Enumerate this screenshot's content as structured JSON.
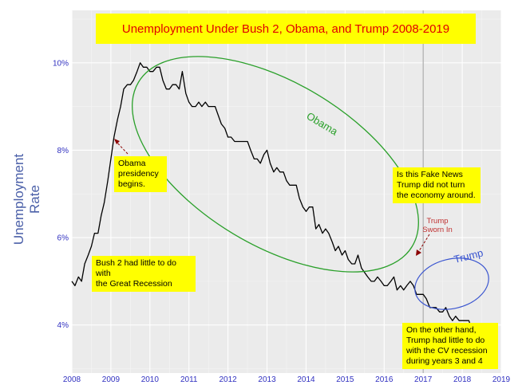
{
  "chart_data": {
    "type": "line",
    "title": "Unemployment Under Bush 2, Obama, and Trump 2008-2019",
    "ylabel": "Unemployment Rate",
    "xlabel": "",
    "xlim": [
      2008,
      2019
    ],
    "ylim": [
      2.9,
      11.2
    ],
    "x_ticks": [
      "2008",
      "2009",
      "2010",
      "2011",
      "2012",
      "2013",
      "2014",
      "2015",
      "2016",
      "2017",
      "2018",
      "2019"
    ],
    "y_ticks": [
      "4%",
      "6%",
      "8%",
      "10%"
    ],
    "y_tick_values": [
      4,
      6,
      8,
      10
    ],
    "grid": true,
    "series": [
      {
        "x": [
          2008.0,
          2008.08,
          2008.17,
          2008.25,
          2008.33,
          2008.42,
          2008.5,
          2008.58,
          2008.67,
          2008.75,
          2008.83,
          2008.92,
          2009.0,
          2009.08,
          2009.17,
          2009.25,
          2009.33,
          2009.42,
          2009.5,
          2009.58,
          2009.67,
          2009.75,
          2009.83,
          2009.92,
          2010.0,
          2010.08,
          2010.17,
          2010.25,
          2010.33,
          2010.42,
          2010.5,
          2010.58,
          2010.67,
          2010.75,
          2010.83,
          2010.92,
          2011.0,
          2011.08,
          2011.17,
          2011.25,
          2011.33,
          2011.42,
          2011.5,
          2011.58,
          2011.67,
          2011.75,
          2011.83,
          2011.92,
          2012.0,
          2012.08,
          2012.17,
          2012.25,
          2012.33,
          2012.42,
          2012.5,
          2012.58,
          2012.67,
          2012.75,
          2012.83,
          2012.92,
          2013.0,
          2013.08,
          2013.17,
          2013.25,
          2013.33,
          2013.42,
          2013.5,
          2013.58,
          2013.67,
          2013.75,
          2013.83,
          2013.92,
          2014.0,
          2014.08,
          2014.17,
          2014.25,
          2014.33,
          2014.42,
          2014.5,
          2014.58,
          2014.67,
          2014.75,
          2014.83,
          2014.92,
          2015.0,
          2015.08,
          2015.17,
          2015.25,
          2015.33,
          2015.42,
          2015.5,
          2015.58,
          2015.67,
          2015.75,
          2015.83,
          2015.92,
          2016.0,
          2016.08,
          2016.17,
          2016.25,
          2016.33,
          2016.42,
          2016.5,
          2016.58,
          2016.67,
          2016.75,
          2016.83,
          2016.92,
          2017.0,
          2017.08,
          2017.17,
          2017.25,
          2017.33,
          2017.42,
          2017.5,
          2017.58,
          2017.67,
          2017.75,
          2017.83,
          2017.92,
          2018.0,
          2018.08,
          2018.17,
          2018.25,
          2018.33,
          2018.42,
          2018.5,
          2018.58,
          2018.67
        ],
        "values": [
          5.0,
          4.9,
          5.1,
          5.0,
          5.4,
          5.6,
          5.8,
          6.1,
          6.1,
          6.5,
          6.8,
          7.3,
          7.8,
          8.3,
          8.7,
          9.0,
          9.4,
          9.5,
          9.5,
          9.6,
          9.8,
          10.0,
          9.9,
          9.9,
          9.8,
          9.8,
          9.9,
          9.9,
          9.6,
          9.4,
          9.4,
          9.5,
          9.5,
          9.4,
          9.8,
          9.3,
          9.1,
          9.0,
          9.0,
          9.1,
          9.0,
          9.1,
          9.0,
          9.0,
          9.0,
          8.8,
          8.6,
          8.5,
          8.3,
          8.3,
          8.2,
          8.2,
          8.2,
          8.2,
          8.2,
          8.0,
          7.8,
          7.8,
          7.7,
          7.9,
          8.0,
          7.7,
          7.5,
          7.6,
          7.5,
          7.5,
          7.3,
          7.2,
          7.2,
          7.2,
          6.9,
          6.7,
          6.6,
          6.7,
          6.7,
          6.2,
          6.3,
          6.1,
          6.2,
          6.1,
          5.9,
          5.7,
          5.8,
          5.6,
          5.7,
          5.5,
          5.4,
          5.4,
          5.6,
          5.3,
          5.2,
          5.1,
          5.0,
          5.0,
          5.1,
          5.0,
          4.9,
          4.9,
          5.0,
          5.1,
          4.8,
          4.9,
          4.8,
          4.9,
          5.0,
          4.9,
          4.7,
          4.7,
          4.7,
          4.6,
          4.4,
          4.4,
          4.4,
          4.3,
          4.3,
          4.4,
          4.2,
          4.1,
          4.2,
          4.1,
          4.1,
          4.1,
          4.1,
          3.9,
          3.8,
          4.0,
          3.9,
          3.8,
          3.7
        ]
      }
    ],
    "annotations": {
      "obama_begins": "Obama\npresidency\nbegins.",
      "bush": "Bush 2 had little to do with\nthe Great Recession",
      "fake_news": "Is this Fake News\nTrump did not turn\nthe economy around.",
      "sworn_in": "Trump\nSworn In",
      "other_hand": "On the other hand,\nTrump  had little to do\nwith the CV recession\nduring years 3 and 4",
      "obama_ellipse_label": "Obama",
      "trump_ellipse_label": "Trump"
    }
  },
  "colors": {
    "panel": "#ebebeb",
    "grid_major": "#ffffff",
    "grid_minor": "#f5f5f5",
    "line": "#000000",
    "title_text": "#e00000",
    "note_bg": "#ffff00",
    "obama_ellipse": "#2aa02a",
    "trump_ellipse": "#3a55d0",
    "arrow": "#8b0000",
    "axis_text": "#3030c0",
    "ylabel": "#4a5fa8",
    "inauguration_line": "#aaaaaa"
  }
}
